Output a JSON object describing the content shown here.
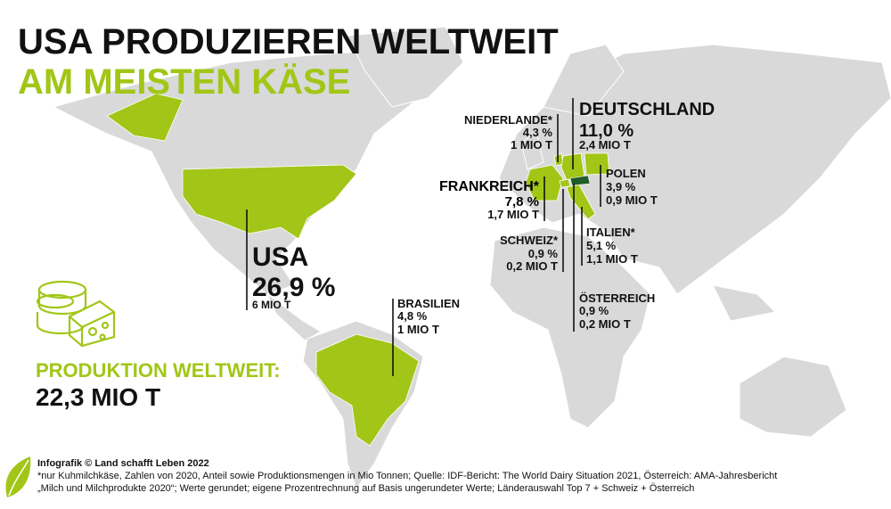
{
  "title": {
    "line1": "USA PRODUZIEREN WELTWEIT",
    "line2": "AM MEISTEN KÄSE"
  },
  "countries": [
    {
      "name": "USA",
      "share": "26,9 %",
      "amount": "6 MIO T"
    },
    {
      "name": "BRASILIEN",
      "share": "4,8 %",
      "amount": "1 MIO T"
    },
    {
      "name": "DEUTSCHLAND",
      "share": "11,0 %",
      "amount": "2,4 MIO T"
    },
    {
      "name": "NIEDERLANDE*",
      "share": "4,3 %",
      "amount": "1 MIO T"
    },
    {
      "name": "FRANKREICH*",
      "share": "7,8 %",
      "amount": "1,7 MIO T"
    },
    {
      "name": "POLEN",
      "share": "3,9 %",
      "amount": "0,9 MIO T"
    },
    {
      "name": "SCHWEIZ*",
      "share": "0,9 %",
      "amount": "0,2 MIO T"
    },
    {
      "name": "ITALIEN*",
      "share": "5,1 %",
      "amount": "1,1 MIO  T"
    },
    {
      "name": "ÖSTERREICH",
      "share": "0,9 %",
      "amount": "0,2 MIO T"
    }
  ],
  "world": {
    "label": "PRODUKTION WELTWEIT:",
    "value": "22,3 MIO T"
  },
  "footer": {
    "credit": "Infografik © Land schafft Leben 2022",
    "note1": "*nur Kuhmilchkäse, Zahlen von 2020, Anteil sowie Produktionsmengen in Mio Tonnen; Quelle: IDF-Bericht: The World Dairy Situation 2021, Österreich: AMA-Jahresbericht",
    "note2": "„Milch und Milchprodukte 2020“; Werte gerundet; eigene Prozentrechnung auf Basis ungerundeter Werte; Länderauswahl Top 7 + Schweiz + Österreich"
  }
}
